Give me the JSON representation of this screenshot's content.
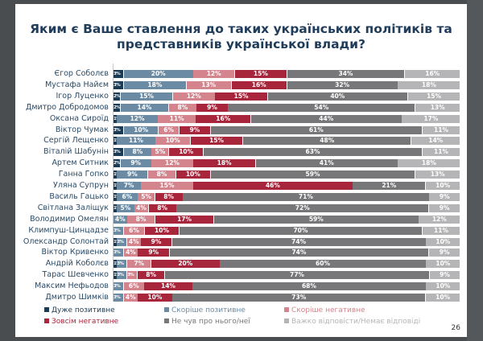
{
  "title_line1": "Яким є Ваше ставлення до таких українських політиків та",
  "title_line2": "представників української влади?",
  "page_number": "26",
  "chart_data": {
    "type": "bar",
    "orientation": "horizontal-stacked-100",
    "title": "Яким є Ваше ставлення до таких українських політиків та представників української влади?",
    "categories": [
      "Єгор Соболєв",
      "Мустафа Найєм",
      "Ігор Луценко",
      "Дмитро Добродомов",
      "Оксана Сироїд",
      "Віктор Чумак",
      "Сергій Лещенко",
      "Віталій Шабунін",
      "Артем Ситник",
      "Ганна Гопко",
      "Уляна Супрун",
      "Василь Гацько",
      "Світлана Заліщук",
      "Володимир Омелян",
      "Климпуш-Цинцадзе",
      "Олександр Солонтай",
      "Віктор Кривенко",
      "Андрій Коболєв",
      "Тарас Шевченко",
      "Максим Нефьодов",
      "Дмитро Шимків"
    ],
    "series": [
      {
        "name": "Дуже позитивне",
        "color": "#1b3a53",
        "values": [
          3,
          3,
          2,
          2,
          1,
          3,
          1,
          3,
          2,
          1,
          1,
          1,
          1,
          0,
          0,
          1,
          0,
          1,
          1,
          0,
          0
        ]
      },
      {
        "name": "Скоріше позитивне",
        "color": "#6b8ba4",
        "values": [
          20,
          18,
          15,
          14,
          12,
          10,
          11,
          8,
          9,
          9,
          7,
          6,
          5,
          4,
          3,
          3,
          3,
          3,
          3,
          3,
          3
        ]
      },
      {
        "name": "Скоріше негативне",
        "color": "#d3848d",
        "values": [
          12,
          13,
          12,
          8,
          11,
          6,
          10,
          5,
          12,
          8,
          15,
          5,
          4,
          8,
          6,
          4,
          4,
          7,
          3,
          6,
          4
        ]
      },
      {
        "name": "Зовсім негативне",
        "color": "#a8263b",
        "values": [
          15,
          16,
          15,
          9,
          16,
          9,
          15,
          10,
          18,
          10,
          46,
          8,
          8,
          17,
          10,
          9,
          9,
          20,
          8,
          14,
          10
        ]
      },
      {
        "name": "Не чув про нього/неї",
        "color": "#77777a",
        "values": [
          34,
          32,
          40,
          54,
          44,
          61,
          48,
          63,
          41,
          59,
          21,
          71,
          72,
          59,
          70,
          74,
          74,
          60,
          77,
          68,
          73
        ]
      },
      {
        "name": "Важко відповісти/Немає відповіді",
        "color": "#b5b5b7",
        "values": [
          16,
          18,
          15,
          13,
          17,
          11,
          14,
          11,
          18,
          13,
          10,
          9,
          9,
          12,
          11,
          10,
          9,
          10,
          9,
          10,
          10
        ]
      }
    ],
    "unit": "%",
    "xlim": [
      0,
      100
    ],
    "legend_position": "bottom"
  }
}
